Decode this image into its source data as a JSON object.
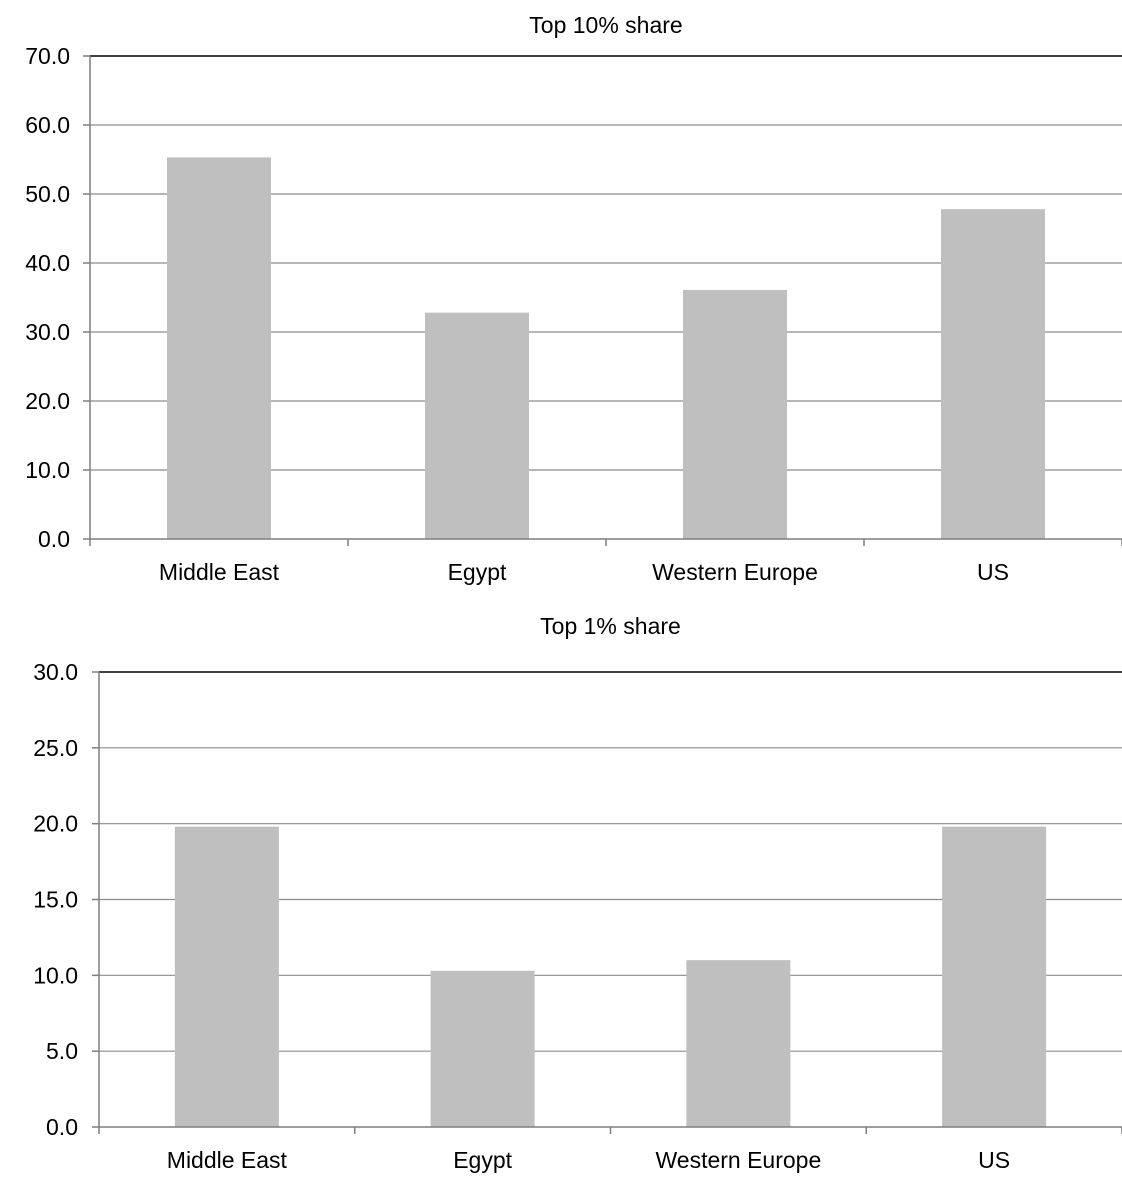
{
  "chart_data": [
    {
      "type": "bar",
      "title": "Top 10% share",
      "xlabel": "",
      "ylabel": "",
      "categories": [
        "Middle East",
        "Egypt",
        "Western Europe",
        "US"
      ],
      "values": [
        55.3,
        32.8,
        36.1,
        47.8
      ],
      "ylim": [
        0,
        70
      ],
      "yticks": [
        "0.0",
        "10.0",
        "20.0",
        "30.0",
        "40.0",
        "50.0",
        "60.0",
        "70.0"
      ],
      "grid": true,
      "legend": "none",
      "bar_color": "#bfbfbf"
    },
    {
      "type": "bar",
      "title": "Top 1% share",
      "xlabel": "",
      "ylabel": "",
      "categories": [
        "Middle East",
        "Egypt",
        "Western Europe",
        "US"
      ],
      "values": [
        19.8,
        10.3,
        11.0,
        19.8
      ],
      "ylim": [
        0,
        30
      ],
      "yticks": [
        "0.0",
        "5.0",
        "10.0",
        "15.0",
        "20.0",
        "25.0",
        "30.0"
      ],
      "grid": true,
      "legend": "none",
      "bar_color": "#bfbfbf"
    }
  ]
}
